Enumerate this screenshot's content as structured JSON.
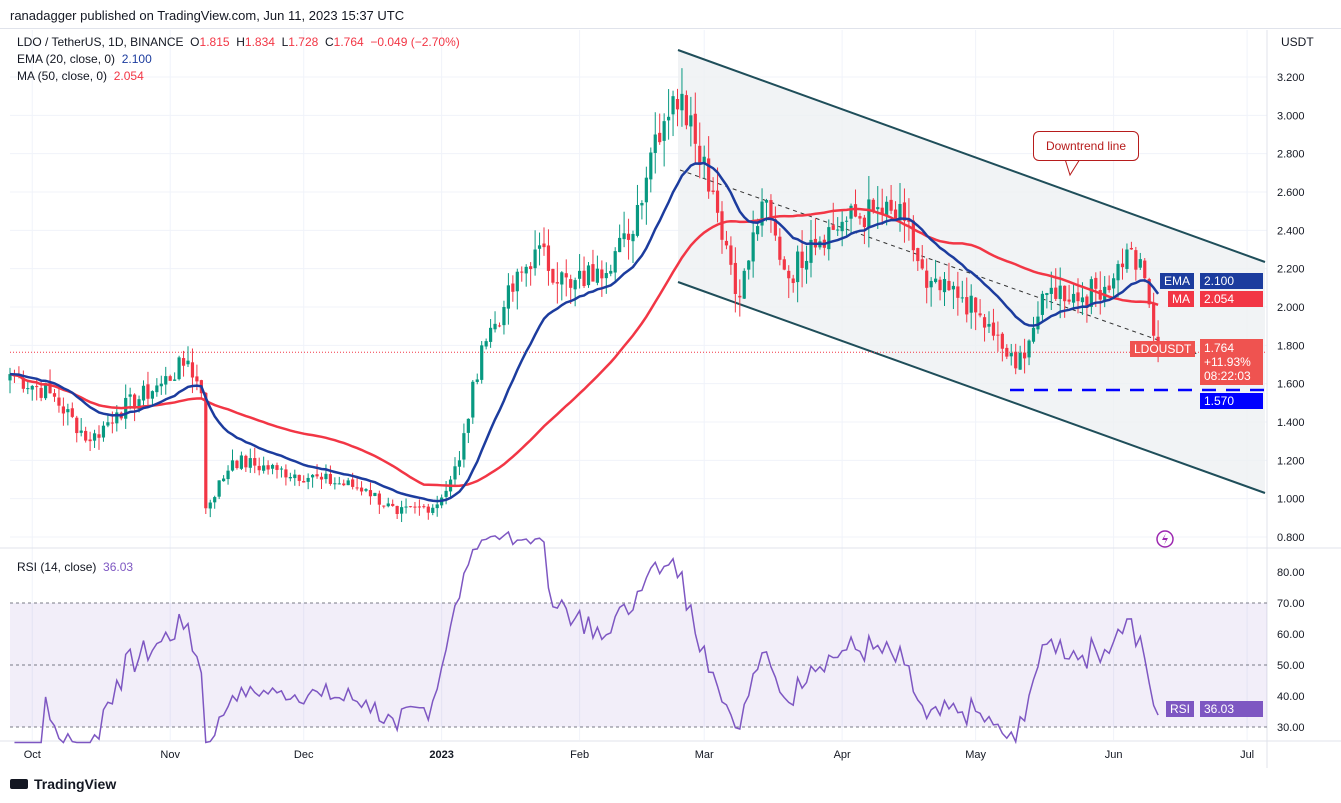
{
  "published": "ranadagger published on TradingView.com, Jun 11, 2023 15:37 UTC",
  "symbol_line": {
    "name": "LDO / TetherUS, 1D, BINANCE",
    "o_label": "O",
    "o": "1.815",
    "h_label": "H",
    "h": "1.834",
    "l_label": "L",
    "l": "1.728",
    "c_label": "C",
    "c": "1.764",
    "change": "−0.049 (−2.70%)"
  },
  "ema_legend": {
    "label": "EMA (20, close, 0)",
    "value": "2.100"
  },
  "ma_legend": {
    "label": "MA (50, close, 0)",
    "value": "2.054"
  },
  "rsi_legend": {
    "label": "RSI (14, close)",
    "value": "36.03"
  },
  "axis_currency": "USDT",
  "tags": {
    "ema_label": "EMA",
    "ema_value": "2.100",
    "ma_label": "MA",
    "ma_value": "2.054",
    "sym_label": "LDOUSDT",
    "price": "1.764",
    "pct": "+11.93%",
    "countdown": "08:22:03",
    "support": "1.570",
    "rsi_label": "RSI",
    "rsi_value": "36.03"
  },
  "annotation": "Downtrend line",
  "footer": "TradingView",
  "colors": {
    "up": "#089981",
    "down": "#f23645",
    "ema": "#1c3c9e",
    "ma": "#f23645",
    "channel": "#1f4e5a",
    "support": "#0000ff",
    "rsi": "#7e57c2"
  },
  "chart_data": {
    "type": "candlestick",
    "title": "LDO / TetherUS, 1D, BINANCE",
    "ylim": [
      0.7,
      3.35
    ],
    "price_ticks": [
      "3.200",
      "3.000",
      "2.800",
      "2.600",
      "2.400",
      "2.200",
      "2.000",
      "1.800",
      "1.600",
      "1.400",
      "1.200",
      "1.000",
      "0.800"
    ],
    "x_ticks": [
      {
        "label": "Oct",
        "day": 5
      },
      {
        "label": "Nov",
        "day": 36
      },
      {
        "label": "Dec",
        "day": 66
      },
      {
        "label": "2023",
        "day": 97
      },
      {
        "label": "Feb",
        "day": 128
      },
      {
        "label": "Mar",
        "day": 156
      },
      {
        "label": "Apr",
        "day": 187
      },
      {
        "label": "May",
        "day": 217
      },
      {
        "label": "Jun",
        "day": 248
      },
      {
        "label": "Jul",
        "day": 278
      }
    ],
    "close_anchors": [
      [
        0,
        1.65
      ],
      [
        9,
        1.55
      ],
      [
        18,
        1.3
      ],
      [
        24,
        1.45
      ],
      [
        34,
        1.6
      ],
      [
        40,
        1.72
      ],
      [
        43,
        1.55
      ],
      [
        44,
        0.95
      ],
      [
        50,
        1.2
      ],
      [
        60,
        1.15
      ],
      [
        70,
        1.1
      ],
      [
        80,
        1.05
      ],
      [
        87,
        0.92
      ],
      [
        96,
        0.97
      ],
      [
        101,
        1.2
      ],
      [
        106,
        1.8
      ],
      [
        111,
        2.0
      ],
      [
        118,
        2.3
      ],
      [
        126,
        2.1
      ],
      [
        132,
        2.2
      ],
      [
        139,
        2.35
      ],
      [
        145,
        2.9
      ],
      [
        149,
        3.1
      ],
      [
        153,
        3.0
      ],
      [
        158,
        2.6
      ],
      [
        164,
        2.05
      ],
      [
        169,
        2.55
      ],
      [
        175,
        2.15
      ],
      [
        180,
        2.35
      ],
      [
        188,
        2.45
      ],
      [
        194,
        2.5
      ],
      [
        201,
        2.45
      ],
      [
        206,
        2.1
      ],
      [
        214,
        2.05
      ],
      [
        221,
        1.85
      ],
      [
        226,
        1.68
      ],
      [
        231,
        1.95
      ],
      [
        234,
        2.1
      ],
      [
        241,
        2.05
      ],
      [
        248,
        2.15
      ],
      [
        251,
        2.3
      ],
      [
        255,
        2.15
      ],
      [
        257,
        1.85
      ],
      [
        258,
        1.764
      ]
    ],
    "rsi_ticks": [
      "80.00",
      "70.00",
      "60.00",
      "50.00",
      "40.00",
      "30.00"
    ],
    "rsi_band": [
      30,
      70
    ],
    "support_level": 1.57
  }
}
